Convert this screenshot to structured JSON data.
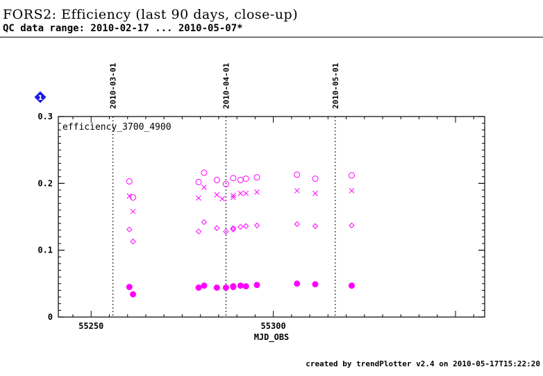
{
  "header": {
    "title": "FORS2: Efficiency (last 90 days, close-up)",
    "subtitle": "QC data range: 2010-02-17 ... 2010-05-07*"
  },
  "footer": {
    "credit": "created by trendPlotter v2.4 on 2010-05-17T15:22:20"
  },
  "badge": {
    "label": "1",
    "color": "#1a1ae6"
  },
  "chart_data": {
    "type": "scatter",
    "panel_label": "efficiency_3700_4900",
    "xlabel": "MJD_OBS",
    "ylabel": "",
    "xlim": [
      55241,
      55358
    ],
    "ylim": [
      0,
      0.3
    ],
    "xticks": [
      55250,
      55300
    ],
    "yticks": [
      0,
      0.1,
      0.2,
      0.3
    ],
    "ytick_labels": [
      "0",
      "0.1",
      "0.2",
      "0.3"
    ],
    "date_markers": [
      {
        "label": "2010-03-01",
        "x": 55256
      },
      {
        "label": "2010-04-01",
        "x": 55287
      },
      {
        "label": "2010-05-01",
        "x": 55317
      }
    ],
    "color": "#ff00ff",
    "series": [
      {
        "marker": "open-circle",
        "points": [
          [
            55260.5,
            0.203
          ],
          [
            55261.5,
            0.179
          ],
          [
            55279.5,
            0.202
          ],
          [
            55281,
            0.216
          ],
          [
            55284.5,
            0.205
          ],
          [
            55287,
            0.199
          ],
          [
            55289,
            0.208
          ],
          [
            55291,
            0.205
          ],
          [
            55292.5,
            0.207
          ],
          [
            55295.5,
            0.209
          ],
          [
            55306.5,
            0.213
          ],
          [
            55311.5,
            0.207
          ],
          [
            55321.5,
            0.212
          ]
        ]
      },
      {
        "marker": "cross",
        "points": [
          [
            55260.5,
            0.181
          ],
          [
            55261.5,
            0.158
          ],
          [
            55279.5,
            0.178
          ],
          [
            55281,
            0.194
          ],
          [
            55284.5,
            0.183
          ],
          [
            55286,
            0.177
          ],
          [
            55289,
            0.182
          ],
          [
            55289,
            0.179
          ],
          [
            55291,
            0.185
          ],
          [
            55292.5,
            0.185
          ],
          [
            55295.5,
            0.187
          ],
          [
            55306.5,
            0.189
          ],
          [
            55311.5,
            0.185
          ],
          [
            55321.5,
            0.189
          ]
        ]
      },
      {
        "marker": "open-diamond",
        "points": [
          [
            55260.5,
            0.131
          ],
          [
            55261.5,
            0.113
          ],
          [
            55279.5,
            0.128
          ],
          [
            55281,
            0.142
          ],
          [
            55284.5,
            0.133
          ],
          [
            55287,
            0.128
          ],
          [
            55289,
            0.133
          ],
          [
            55289,
            0.131
          ],
          [
            55291,
            0.135
          ],
          [
            55292.5,
            0.136
          ],
          [
            55295.5,
            0.137
          ],
          [
            55306.5,
            0.139
          ],
          [
            55311.5,
            0.136
          ],
          [
            55321.5,
            0.137
          ]
        ]
      },
      {
        "marker": "filled-circle",
        "points": [
          [
            55260.5,
            0.045
          ],
          [
            55261.5,
            0.034
          ],
          [
            55279.5,
            0.044
          ],
          [
            55281,
            0.047
          ],
          [
            55284.5,
            0.044
          ],
          [
            55287,
            0.044
          ],
          [
            55289,
            0.046
          ],
          [
            55289,
            0.045
          ],
          [
            55291,
            0.047
          ],
          [
            55292.5,
            0.046
          ],
          [
            55295.5,
            0.048
          ],
          [
            55306.5,
            0.05
          ],
          [
            55311.5,
            0.049
          ],
          [
            55321.5,
            0.047
          ]
        ]
      }
    ]
  }
}
